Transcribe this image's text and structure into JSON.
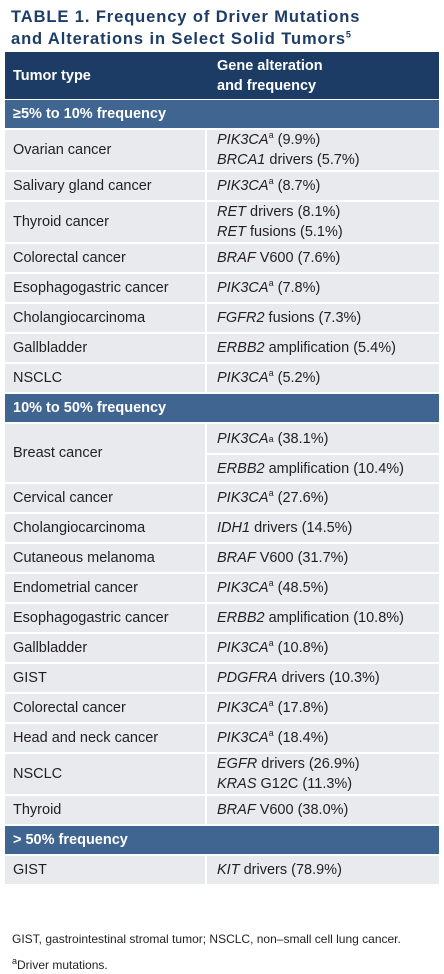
{
  "title": {
    "label": "TABLE 1.",
    "text_line1": "Frequency of Driver Mutations",
    "text_line2": "and Alterations in Select Solid Tumors",
    "ref": "5"
  },
  "header": {
    "col1": "Tumor type",
    "col2_line1": "Gene alteration",
    "col2_line2": "and frequency"
  },
  "sections": [
    {
      "label": "≥5% to 10% frequency",
      "rows": [
        {
          "tumor": "Ovarian cancer",
          "entries": [
            {
              "gene": "PIK3CA",
              "sup": "a",
              "rest": " (9.9%)"
            },
            {
              "gene": "BRCA1",
              "sup": "",
              "rest": " drivers (5.7%)"
            }
          ]
        },
        {
          "tumor": "Salivary gland cancer",
          "entries": [
            {
              "gene": "PIK3CA",
              "sup": "a",
              "rest": " (8.7%)"
            }
          ]
        },
        {
          "tumor": "Thyroid cancer",
          "entries": [
            {
              "gene": "RET",
              "sup": "",
              "rest": " drivers (8.1%)"
            },
            {
              "gene": "RET",
              "sup": "",
              "rest": " fusions (5.1%)"
            }
          ]
        },
        {
          "tumor": "Colorectal cancer",
          "entries": [
            {
              "gene": "BRAF",
              "sup": "",
              "rest": " V600 (7.6%)"
            }
          ]
        },
        {
          "tumor": "Esophagogastric cancer",
          "entries": [
            {
              "gene": "PIK3CA",
              "sup": "a",
              "rest": " (7.8%)"
            }
          ]
        },
        {
          "tumor": "Cholangiocarcinoma",
          "entries": [
            {
              "gene": "FGFR2",
              "sup": "",
              "rest": " fusions (7.3%)"
            }
          ]
        },
        {
          "tumor": "Gallbladder",
          "entries": [
            {
              "gene": "ERBB2",
              "sup": "",
              "rest": " amplification (5.4%)"
            }
          ]
        },
        {
          "tumor": "NSCLC",
          "entries": [
            {
              "gene": "PIK3CA",
              "sup": "a",
              "rest": " (5.2%)"
            }
          ]
        }
      ]
    },
    {
      "label": "10% to 50% frequency",
      "rows": [
        {
          "tumor": "Breast cancer",
          "split": true,
          "entries": [
            {
              "gene": "PIK3CA",
              "sup": "a",
              "rest": " (38.1%)"
            },
            {
              "gene": "ERBB2",
              "sup": "",
              "rest": " amplification (10.4%)"
            }
          ]
        },
        {
          "tumor": "Cervical cancer",
          "entries": [
            {
              "gene": "PIK3CA",
              "sup": "a",
              "rest": " (27.6%)"
            }
          ]
        },
        {
          "tumor": "Cholangiocarcinoma",
          "entries": [
            {
              "gene": "IDH1",
              "sup": "",
              "rest": " drivers (14.5%)"
            }
          ]
        },
        {
          "tumor": "Cutaneous melanoma",
          "entries": [
            {
              "gene": "BRAF",
              "sup": "",
              "rest": " V600 (31.7%)"
            }
          ]
        },
        {
          "tumor": "Endometrial cancer",
          "entries": [
            {
              "gene": "PIK3CA",
              "sup": "a",
              "rest": " (48.5%)"
            }
          ]
        },
        {
          "tumor": "Esophagogastric cancer",
          "entries": [
            {
              "gene": "ERBB2",
              "sup": "",
              "rest": " amplification (10.8%)"
            }
          ]
        },
        {
          "tumor": "Gallbladder",
          "entries": [
            {
              "gene": "PIK3CA",
              "sup": "a",
              "rest": " (10.8%)"
            }
          ]
        },
        {
          "tumor": "GIST",
          "entries": [
            {
              "gene": "PDGFRA",
              "sup": "",
              "rest": " drivers (10.3%)"
            }
          ]
        },
        {
          "tumor": "Colorectal cancer",
          "entries": [
            {
              "gene": "PIK3CA",
              "sup": "a",
              "rest": " (17.8%)"
            }
          ]
        },
        {
          "tumor": "Head and neck cancer",
          "entries": [
            {
              "gene": "PIK3CA",
              "sup": "a",
              "rest": " (18.4%)"
            }
          ]
        },
        {
          "tumor": "NSCLC",
          "entries": [
            {
              "gene": "EGFR",
              "sup": "",
              "rest": " drivers (26.9%)"
            },
            {
              "gene": "KRAS",
              "sup": "",
              "rest": " G12C (11.3%)"
            }
          ]
        },
        {
          "tumor": "Thyroid",
          "entries": [
            {
              "gene": "BRAF",
              "sup": "",
              "rest": " V600 (38.0%)"
            }
          ]
        }
      ]
    },
    {
      "label": "> 50% frequency",
      "rows": [
        {
          "tumor": "GIST",
          "entries": [
            {
              "gene": "KIT",
              "sup": "",
              "rest": " drivers (78.9%)"
            }
          ]
        }
      ]
    }
  ],
  "footnotes": {
    "abbrev": "GIST, gastrointestinal stromal tumor; NSCLC, non–small cell lung cancer.",
    "note_mark": "a",
    "note_text": "Driver mutations."
  }
}
